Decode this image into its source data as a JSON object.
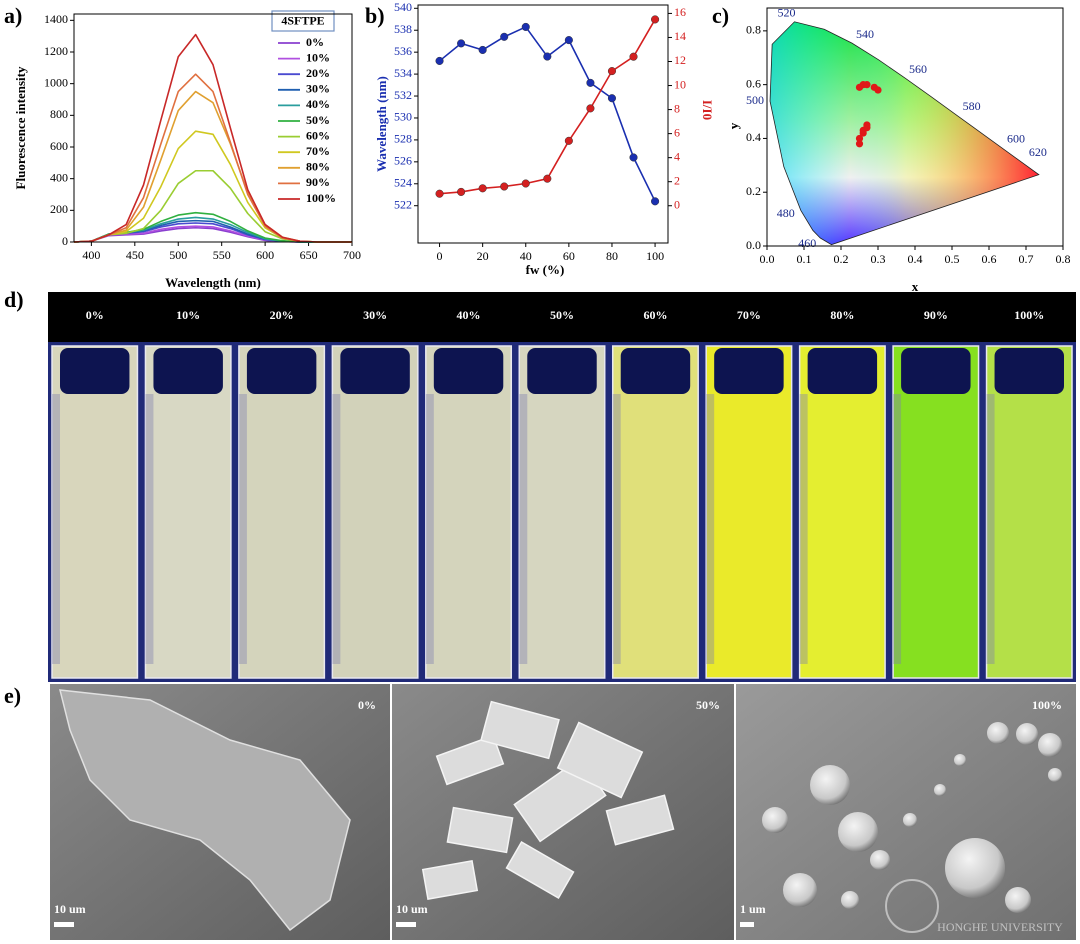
{
  "panel_labels": [
    "a)",
    "b)",
    "c)",
    "d)",
    "e)"
  ],
  "chart_data": [
    {
      "type": "line",
      "legend_title": "4SFTPE",
      "x_label": "Wavelength (nm)",
      "y_label": "Fluorescence intensity",
      "x": [
        380,
        400,
        420,
        440,
        460,
        480,
        500,
        520,
        540,
        560,
        580,
        600,
        620,
        640,
        660,
        680,
        700
      ],
      "xlim": [
        380,
        700
      ],
      "xticks": [
        400,
        450,
        500,
        550,
        600,
        650,
        700
      ],
      "ylim": [
        0,
        1440
      ],
      "yticks": [
        0,
        200,
        400,
        600,
        800,
        1000,
        1200,
        1400
      ],
      "series": [
        {
          "name": "0%",
          "color": "#8a3fcf",
          "values": [
            0,
            5,
            40,
            45,
            50,
            70,
            85,
            90,
            85,
            62,
            33,
            10,
            3,
            0,
            0,
            0,
            0
          ]
        },
        {
          "name": "10%",
          "color": "#b050e0",
          "values": [
            0,
            5,
            45,
            50,
            55,
            80,
            95,
            100,
            95,
            70,
            38,
            12,
            3,
            0,
            0,
            0,
            0
          ]
        },
        {
          "name": "20%",
          "color": "#4a4ad0",
          "values": [
            0,
            5,
            50,
            55,
            65,
            95,
            115,
            120,
            115,
            85,
            45,
            15,
            5,
            0,
            0,
            0,
            0
          ]
        },
        {
          "name": "30%",
          "color": "#1f5fb0",
          "values": [
            0,
            5,
            50,
            58,
            70,
            105,
            130,
            135,
            130,
            95,
            50,
            18,
            5,
            0,
            0,
            0,
            0
          ]
        },
        {
          "name": "40%",
          "color": "#2a9e9e",
          "values": [
            0,
            5,
            50,
            60,
            75,
            115,
            145,
            155,
            145,
            110,
            60,
            20,
            5,
            0,
            0,
            0,
            0
          ]
        },
        {
          "name": "50%",
          "color": "#30b040",
          "values": [
            0,
            5,
            50,
            60,
            80,
            130,
            170,
            185,
            175,
            130,
            70,
            25,
            8,
            0,
            0,
            0,
            0
          ]
        },
        {
          "name": "60%",
          "color": "#9acd32",
          "values": [
            0,
            5,
            45,
            55,
            85,
            200,
            370,
            450,
            450,
            340,
            180,
            65,
            20,
            5,
            0,
            0,
            0
          ]
        },
        {
          "name": "70%",
          "color": "#d0c820",
          "values": [
            0,
            5,
            45,
            65,
            150,
            350,
            590,
            700,
            680,
            490,
            250,
            90,
            25,
            5,
            0,
            0,
            0
          ]
        },
        {
          "name": "80%",
          "color": "#e0a030",
          "values": [
            0,
            5,
            45,
            75,
            220,
            520,
            830,
            950,
            880,
            620,
            310,
            110,
            30,
            5,
            0,
            0,
            0
          ]
        },
        {
          "name": "90%",
          "color": "#e07040",
          "values": [
            0,
            5,
            45,
            90,
            280,
            620,
            950,
            1060,
            950,
            630,
            300,
            100,
            25,
            5,
            0,
            0,
            0
          ]
        },
        {
          "name": "100%",
          "color": "#c82828",
          "values": [
            0,
            5,
            45,
            110,
            360,
            770,
            1170,
            1310,
            1120,
            720,
            330,
            110,
            30,
            5,
            0,
            0,
            0
          ]
        }
      ]
    },
    {
      "type": "line",
      "markers": true,
      "x_label": "fw (%)",
      "y_label": "Wavelength (nm)",
      "y2_label": "I/I0",
      "x": [
        0,
        10,
        20,
        30,
        40,
        50,
        60,
        70,
        80,
        90,
        100
      ],
      "xlim": [
        -10,
        106
      ],
      "xticks": [
        0,
        20,
        40,
        60,
        80,
        100
      ],
      "ylim": [
        518.6,
        540.3
      ],
      "yticks": [
        522,
        524,
        526,
        528,
        530,
        532,
        534,
        536,
        538,
        540
      ],
      "y2lim": [
        -3.1,
        16.7
      ],
      "y2ticks": [
        0,
        2,
        4,
        6,
        8,
        10,
        12,
        14,
        16
      ],
      "series": [
        {
          "color": "#1a2fb0",
          "values": [
            535.2,
            536.8,
            536.2,
            537.4,
            538.3,
            535.6,
            537.1,
            533.2,
            531.8,
            526.4,
            522.4
          ]
        },
        {
          "color": "#d42020",
          "axis": "y2",
          "values": [
            1.0,
            1.15,
            1.45,
            1.6,
            1.85,
            2.25,
            5.4,
            8.1,
            11.2,
            12.4,
            15.5
          ]
        }
      ]
    },
    {
      "type": "scatter",
      "x_label": "x",
      "y_label": "y",
      "color": "#e01818",
      "xlim": [
        0,
        0.8
      ],
      "xticks": [
        {
          "value": 0,
          "label": "0.0"
        },
        0.1,
        0.2,
        0.3,
        0.4,
        0.5,
        0.6,
        0.7,
        0.8
      ],
      "ylim": [
        0,
        0.885
      ],
      "yticks": [
        {
          "value": 0,
          "label": "0.0"
        },
        0.2,
        0.4,
        0.6,
        0.8
      ],
      "wavelength_labels": [
        "460",
        "480",
        "500",
        "520",
        "540",
        "560",
        "580",
        "600",
        "620"
      ],
      "x": [
        0.25,
        0.25,
        0.26,
        0.26,
        0.27,
        0.27,
        0.25,
        0.26,
        0.27,
        0.29,
        0.3
      ],
      "values": [
        0.38,
        0.4,
        0.42,
        0.43,
        0.44,
        0.45,
        0.59,
        0.6,
        0.6,
        0.59,
        0.58
      ]
    }
  ],
  "photo_d": {
    "labels": [
      "0%",
      "10%",
      "20%",
      "30%",
      "40%",
      "50%",
      "60%",
      "70%",
      "80%",
      "90%",
      "100%"
    ]
  },
  "photo_e": {
    "panels": [
      {
        "label": "0%",
        "scale_bar": "10 um"
      },
      {
        "label": "50%",
        "scale_bar": "10 um"
      },
      {
        "label": "100%",
        "scale_bar": "1 um"
      }
    ]
  },
  "watermark": "HONGHE UNIVERSITY"
}
